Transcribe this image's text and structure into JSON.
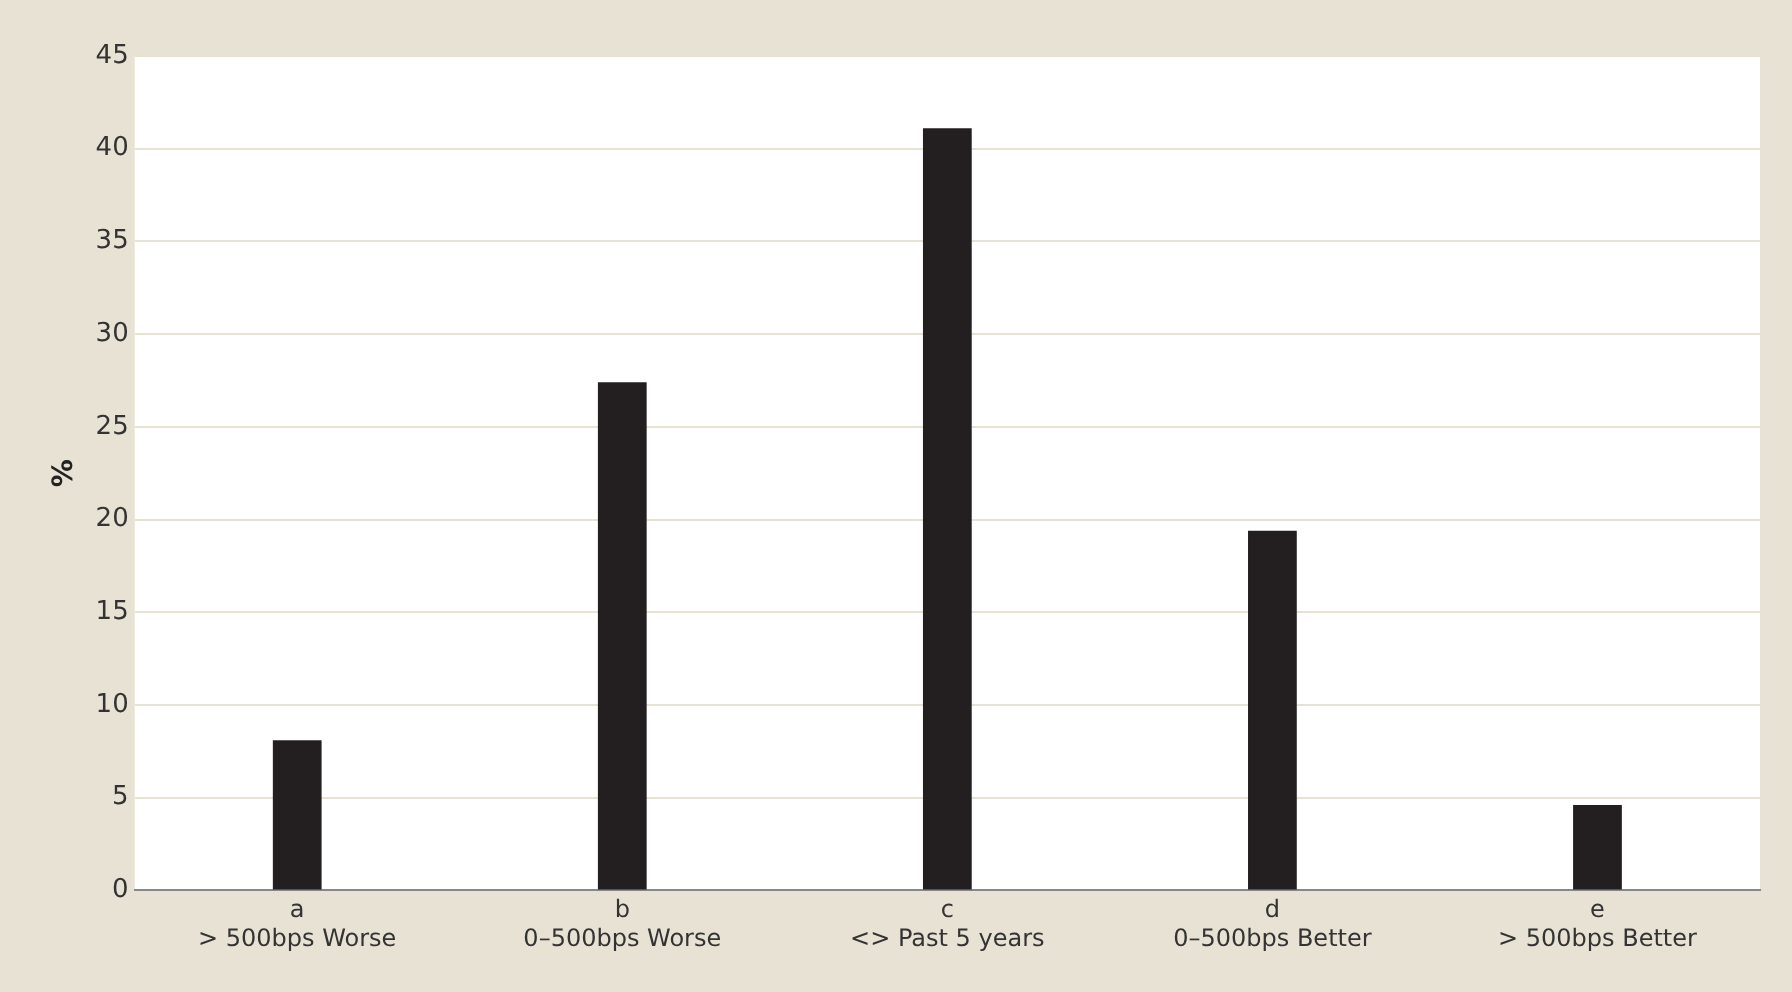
{
  "chart_data": {
    "type": "bar",
    "ylabel": "%",
    "categories": [
      "a\n> 500bps Worse",
      "b\n0–500bps Worse",
      "c\n<> Past 5 years",
      "d\n0–500bps Better",
      "e\n> 500bps Better"
    ],
    "values": [
      8.1,
      27.4,
      41.1,
      19.4,
      4.6
    ],
    "color": "#231f20",
    "ylim": [
      0,
      45
    ],
    "yticks": [
      0,
      5,
      10,
      15,
      20,
      25,
      30,
      35,
      40,
      45
    ],
    "grid": "y",
    "legend": false
  }
}
